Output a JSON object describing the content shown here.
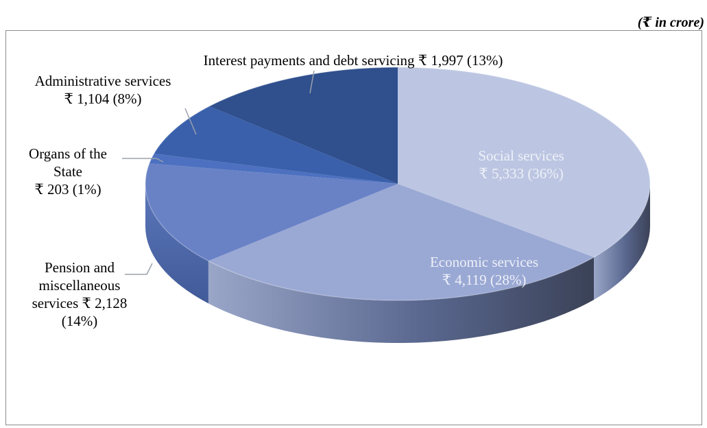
{
  "unit_note": "(₹ in crore)",
  "chart_data": {
    "type": "pie",
    "style": "3d",
    "slices": [
      {
        "label": "Social services",
        "value": 5333,
        "value_text": "₹ 5,333 (36%)",
        "percent": 36,
        "color": "#bcc6e2",
        "label_position": "inside"
      },
      {
        "label": "Economic services",
        "value": 4119,
        "value_text": "₹ 4,119 (28%)",
        "percent": 28,
        "color": "#9aa8d4",
        "label_position": "inside"
      },
      {
        "label": "Pension and miscellaneous services",
        "value": 2128,
        "value_text": "₹ 2,128 (14%)",
        "percent": 14,
        "color": "#6982c6",
        "label_position": "outside"
      },
      {
        "label": "Organs of the State",
        "value": 203,
        "value_text": "₹ 203 (1%)",
        "percent": 1,
        "color": "#4d71c0",
        "label_position": "outside"
      },
      {
        "label": "Administrative services",
        "value": 1104,
        "value_text": "₹ 1,104 (8%)",
        "percent": 8,
        "color": "#3a60ab",
        "label_position": "outside"
      },
      {
        "label": "Interest payments and debt servicing",
        "value": 1997,
        "value_text": "₹ 1,997 (13%)",
        "percent": 13,
        "color": "#2f4f8d",
        "label_position": "outside"
      }
    ],
    "label_lines": {
      "social": [
        "Social services",
        "₹ 5,333 (36%)"
      ],
      "economic": [
        "Economic services",
        "₹ 4,119 (28%)"
      ],
      "pension": [
        "Pension and",
        "miscellaneous",
        "services ₹ 2,128",
        "(14%)"
      ],
      "organs": [
        "Organs of the",
        "State",
        "₹ 203 (1%)"
      ],
      "admin": [
        "Administrative services",
        "₹ 1,104 (8%)"
      ],
      "interest": [
        "Interest payments and debt servicing ₹ 1,997 (13%)"
      ]
    }
  }
}
